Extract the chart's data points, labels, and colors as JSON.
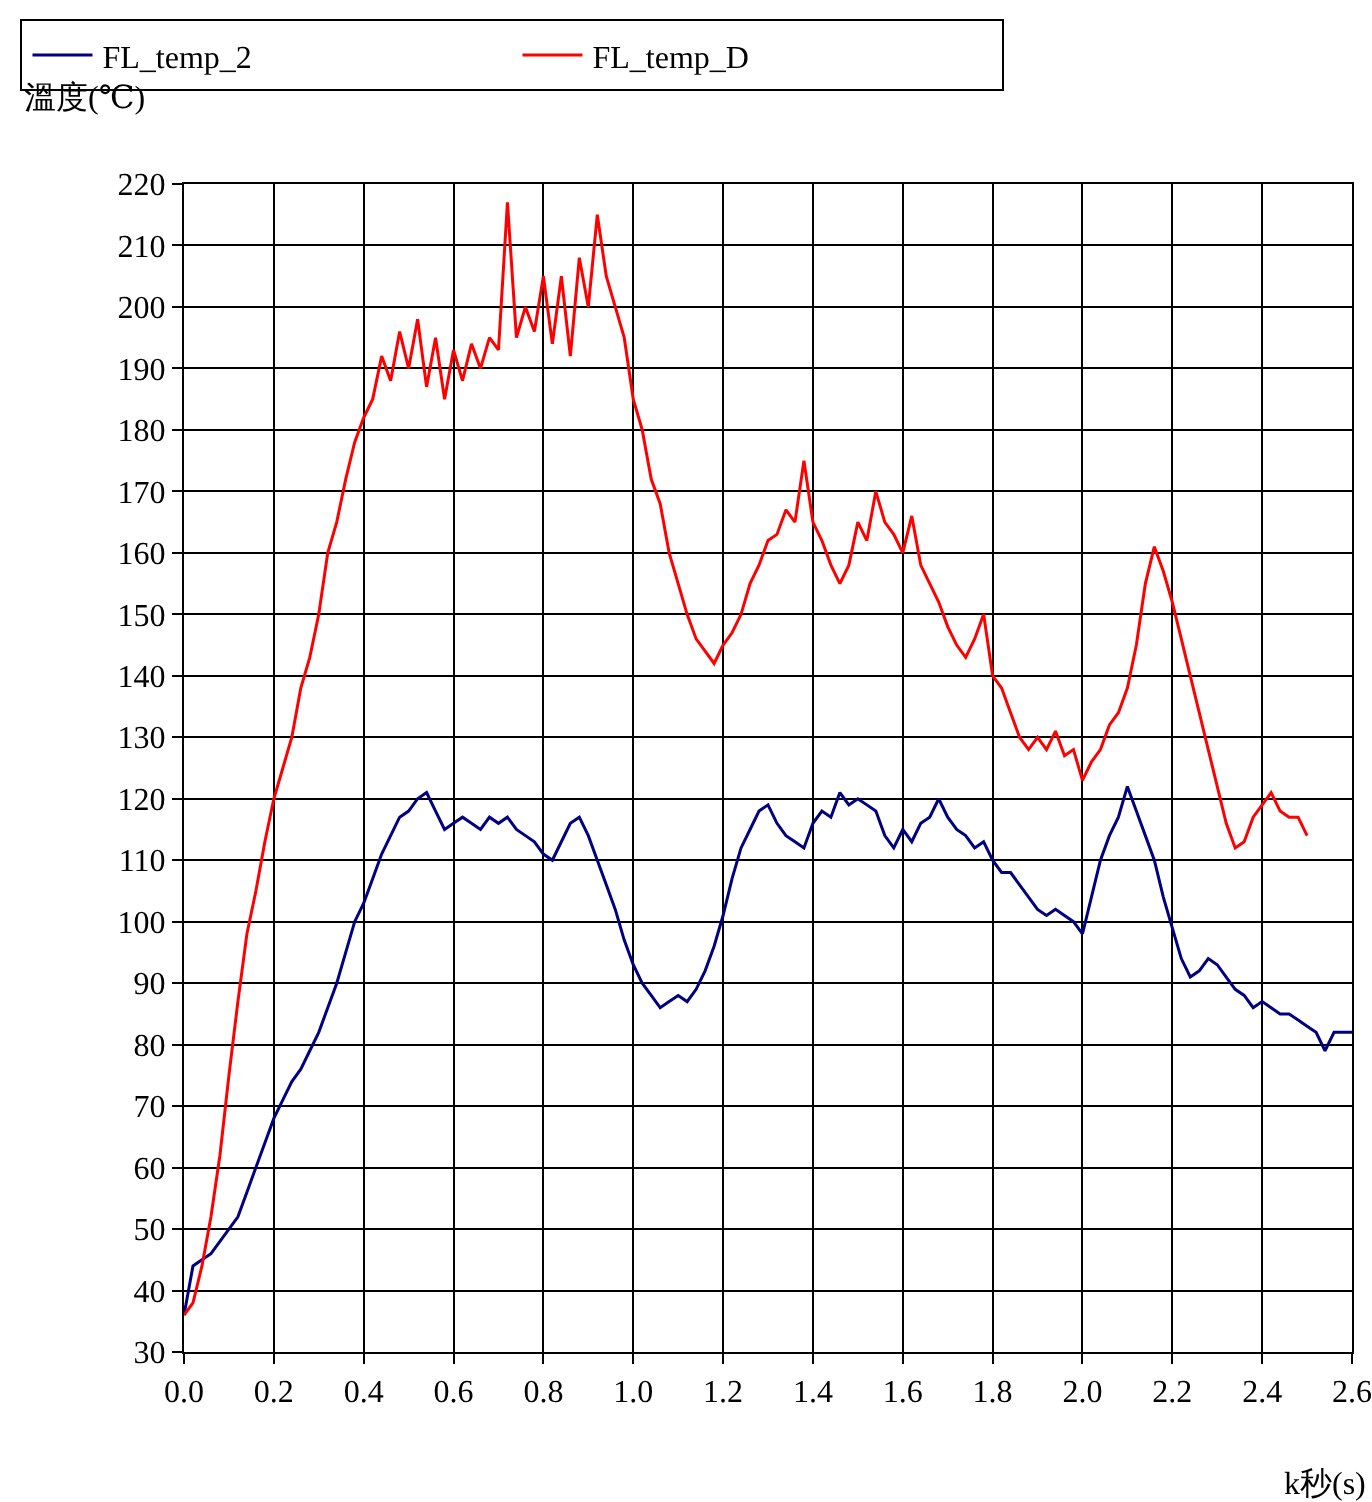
{
  "chart_data": {
    "type": "line",
    "xlabel": "k秒(s)",
    "ylabel": "溫度(℃)",
    "xlim": [
      0,
      2.6
    ],
    "xticks": [
      {
        "value": 0,
        "label": "0.0"
      },
      0.2,
      0.4,
      0.6,
      0.8,
      {
        "value": 1,
        "label": "1.0"
      },
      1.2,
      1.4,
      1.6,
      1.8,
      {
        "value": 2,
        "label": "2.0"
      },
      2.2,
      2.4,
      2.6
    ],
    "ylim": [
      30,
      220
    ],
    "yticks": [
      30,
      40,
      50,
      60,
      70,
      80,
      90,
      100,
      110,
      120,
      130,
      140,
      150,
      160,
      170,
      180,
      190,
      200,
      210,
      220
    ],
    "grid": true,
    "legend": "top",
    "marker": "none",
    "line_style": "solid",
    "series": [
      {
        "name": "FL_temp_2",
        "color": "#000080",
        "x": [
          0,
          0.01,
          0.02,
          0.04,
          0.06,
          0.08,
          0.1,
          0.12,
          0.14,
          0.16,
          0.18,
          0.2,
          0.22,
          0.24,
          0.26,
          0.28,
          0.3,
          0.32,
          0.34,
          0.36,
          0.38,
          0.4,
          0.42,
          0.44,
          0.46,
          0.48,
          0.5,
          0.52,
          0.54,
          0.56,
          0.58,
          0.6,
          0.62,
          0.64,
          0.66,
          0.68,
          0.7,
          0.72,
          0.74,
          0.76,
          0.78,
          0.8,
          0.82,
          0.84,
          0.86,
          0.88,
          0.9,
          0.92,
          0.94,
          0.96,
          0.98,
          1,
          1.02,
          1.04,
          1.06,
          1.08,
          1.1,
          1.12,
          1.14,
          1.16,
          1.18,
          1.2,
          1.22,
          1.24,
          1.26,
          1.28,
          1.3,
          1.32,
          1.34,
          1.36,
          1.38,
          1.4,
          1.42,
          1.44,
          1.46,
          1.48,
          1.5,
          1.52,
          1.54,
          1.56,
          1.58,
          1.6,
          1.62,
          1.64,
          1.66,
          1.68,
          1.7,
          1.72,
          1.74,
          1.76,
          1.78,
          1.8,
          1.82,
          1.84,
          1.86,
          1.88,
          1.9,
          1.92,
          1.94,
          1.96,
          1.98,
          2,
          2.02,
          2.04,
          2.06,
          2.08,
          2.1,
          2.12,
          2.14,
          2.16,
          2.18,
          2.2,
          2.22,
          2.24,
          2.26,
          2.28,
          2.3,
          2.32,
          2.34,
          2.36,
          2.38,
          2.4,
          2.42,
          2.44,
          2.46,
          2.48,
          2.5,
          2.52,
          2.54,
          2.56,
          2.58,
          2.6
        ],
        "values": [
          36,
          40,
          44,
          45,
          46,
          48,
          50,
          52,
          56,
          60,
          64,
          68,
          71,
          74,
          76,
          79,
          82,
          86,
          90,
          95,
          100,
          103,
          107,
          111,
          114,
          117,
          118,
          120,
          121,
          118,
          115,
          116,
          117,
          116,
          115,
          117,
          116,
          117,
          115,
          114,
          113,
          111,
          110,
          113,
          116,
          117,
          114,
          110,
          106,
          102,
          97,
          93,
          90,
          88,
          86,
          87,
          88,
          87,
          89,
          92,
          96,
          101,
          107,
          112,
          115,
          118,
          119,
          116,
          114,
          113,
          112,
          116,
          118,
          117,
          121,
          119,
          120,
          119,
          118,
          114,
          112,
          115,
          113,
          116,
          117,
          120,
          117,
          115,
          114,
          112,
          113,
          110,
          108,
          108,
          106,
          104,
          102,
          101,
          102,
          101,
          100,
          98,
          104,
          110,
          114,
          117,
          122,
          118,
          114,
          110,
          104,
          99,
          94,
          91,
          92,
          94,
          93,
          91,
          89,
          88,
          86,
          87,
          86,
          85,
          85,
          84,
          83,
          82,
          79,
          82,
          82,
          82
        ]
      },
      {
        "name": "FL_temp_D",
        "color": "#ff0000",
        "x": [
          0,
          0.02,
          0.04,
          0.06,
          0.08,
          0.1,
          0.12,
          0.14,
          0.16,
          0.18,
          0.2,
          0.22,
          0.24,
          0.26,
          0.28,
          0.3,
          0.32,
          0.34,
          0.36,
          0.38,
          0.4,
          0.42,
          0.44,
          0.46,
          0.48,
          0.5,
          0.52,
          0.54,
          0.56,
          0.58,
          0.6,
          0.62,
          0.64,
          0.66,
          0.68,
          0.7,
          0.72,
          0.74,
          0.76,
          0.78,
          0.8,
          0.82,
          0.84,
          0.86,
          0.88,
          0.9,
          0.92,
          0.94,
          0.96,
          0.98,
          1,
          1.02,
          1.04,
          1.06,
          1.08,
          1.1,
          1.12,
          1.14,
          1.16,
          1.18,
          1.2,
          1.22,
          1.24,
          1.26,
          1.28,
          1.3,
          1.32,
          1.34,
          1.36,
          1.38,
          1.4,
          1.42,
          1.44,
          1.46,
          1.48,
          1.5,
          1.52,
          1.54,
          1.56,
          1.58,
          1.6,
          1.62,
          1.64,
          1.66,
          1.68,
          1.7,
          1.72,
          1.74,
          1.76,
          1.78,
          1.8,
          1.82,
          1.84,
          1.86,
          1.88,
          1.9,
          1.92,
          1.94,
          1.96,
          1.98,
          2,
          2.02,
          2.04,
          2.06,
          2.08,
          2.1,
          2.12,
          2.14,
          2.16,
          2.18,
          2.2,
          2.22,
          2.24,
          2.26,
          2.28,
          2.3,
          2.32,
          2.34,
          2.36,
          2.38,
          2.4,
          2.42,
          2.44,
          2.46,
          2.48,
          2.5
        ],
        "values": [
          36,
          38,
          44,
          52,
          62,
          75,
          87,
          98,
          105,
          113,
          120,
          125,
          130,
          138,
          143,
          150,
          160,
          165,
          172,
          178,
          182,
          185,
          192,
          188,
          196,
          190,
          198,
          187,
          195,
          185,
          193,
          188,
          194,
          190,
          195,
          193,
          217,
          195,
          200,
          196,
          205,
          194,
          205,
          192,
          208,
          200,
          215,
          205,
          200,
          195,
          185,
          180,
          172,
          168,
          160,
          155,
          150,
          146,
          144,
          142,
          145,
          147,
          150,
          155,
          158,
          162,
          163,
          167,
          165,
          175,
          165,
          162,
          158,
          155,
          158,
          165,
          162,
          170,
          165,
          163,
          160,
          166,
          158,
          155,
          152,
          148,
          145,
          143,
          146,
          150,
          140,
          138,
          134,
          130,
          128,
          130,
          128,
          131,
          127,
          128,
          123,
          126,
          128,
          132,
          134,
          138,
          145,
          155,
          161,
          157,
          152,
          146,
          140,
          134,
          128,
          122,
          116,
          112,
          113,
          117,
          119,
          121,
          118,
          117,
          117,
          114
        ]
      }
    ]
  }
}
